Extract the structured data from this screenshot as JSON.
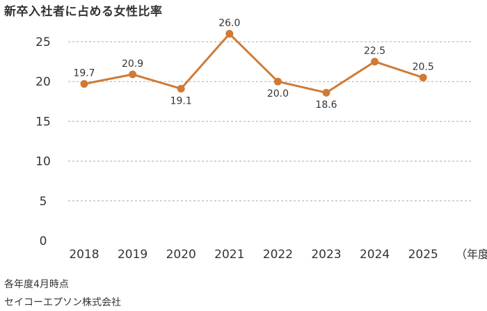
{
  "title": "新卒入社者に占める女性比率",
  "notes": {
    "basis": "各年度4月時点",
    "company": "セイコーエプソン株式会社"
  },
  "colors": {
    "series": "#d07a35",
    "grid": "#aaaaaa",
    "text": "#333333"
  },
  "chart_data": {
    "type": "line",
    "title": "新卒入社者に占める女性比率",
    "categories": [
      "2018",
      "2019",
      "2020",
      "2021",
      "2022",
      "2023",
      "2024",
      "2025"
    ],
    "x_unit_label": "（年度）",
    "series": [
      {
        "name": "女性比率",
        "values": [
          19.7,
          20.9,
          19.1,
          26.0,
          20.0,
          18.6,
          22.5,
          20.5
        ],
        "labels": [
          "19.7",
          "20.9",
          "19.1",
          "26.0",
          "20.0",
          "18.6",
          "22.5",
          "20.5"
        ],
        "label_positions": [
          "above",
          "above",
          "below",
          "above",
          "below",
          "below",
          "above",
          "above"
        ]
      }
    ],
    "ylim": [
      0,
      25
    ],
    "yticks": [
      0,
      5,
      10,
      15,
      20,
      25
    ],
    "ytick_labels": [
      "0",
      "5",
      "10",
      "15",
      "20",
      "25"
    ],
    "grid": true,
    "legend": "none"
  }
}
